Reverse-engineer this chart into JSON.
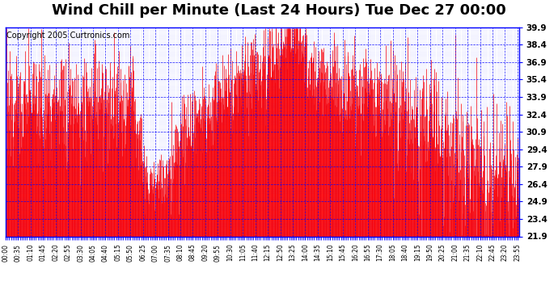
{
  "title": "Wind Chill per Minute (Last 24 Hours) Tue Dec 27 00:00",
  "copyright": "Copyright 2005 Curtronics.com",
  "ylabel_values": [
    21.9,
    23.4,
    24.9,
    26.4,
    27.9,
    29.4,
    30.9,
    32.4,
    33.9,
    35.4,
    36.9,
    38.4,
    39.9
  ],
  "ymin": 21.9,
  "ymax": 39.9,
  "line_color": "red",
  "grid_color": "blue",
  "background_color": "white",
  "title_fontsize": 13,
  "copyright_fontsize": 7,
  "tick_interval_min": 35
}
